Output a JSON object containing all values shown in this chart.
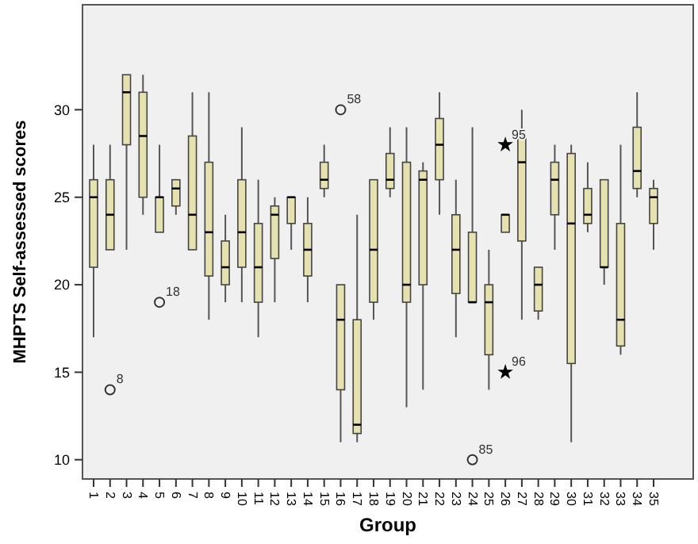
{
  "chart_data": {
    "type": "box",
    "xlabel": "Group",
    "ylabel": "MHPTS Self-assessed scores",
    "categories": [
      "1",
      "2",
      "3",
      "4",
      "5",
      "6",
      "7",
      "8",
      "9",
      "10",
      "11",
      "12",
      "13",
      "14",
      "15",
      "16",
      "17",
      "18",
      "19",
      "20",
      "21",
      "22",
      "23",
      "24",
      "25",
      "26",
      "27",
      "28",
      "29",
      "30",
      "31",
      "32",
      "33",
      "34",
      "35"
    ],
    "ylim": [
      8.9,
      36
    ],
    "yticks": [
      10,
      15,
      20,
      25,
      30
    ],
    "grid": false,
    "color": "#e6e2b0",
    "boxes": [
      {
        "low": 17,
        "q1": 21,
        "median": 25,
        "q3": 26,
        "high": 28
      },
      {
        "low": 22,
        "q1": 22,
        "median": 24,
        "q3": 26,
        "high": 28
      },
      {
        "low": 22,
        "q1": 28,
        "median": 31,
        "q3": 32,
        "high": 32
      },
      {
        "low": 24,
        "q1": 25,
        "median": 28.5,
        "q3": 31,
        "high": 32
      },
      {
        "low": 23,
        "q1": 23,
        "median": 25,
        "q3": 25,
        "high": 28
      },
      {
        "low": 24,
        "q1": 24.5,
        "median": 25.5,
        "q3": 26,
        "high": 26
      },
      {
        "low": 22,
        "q1": 22,
        "median": 24,
        "q3": 28.5,
        "high": 31
      },
      {
        "low": 18,
        "q1": 20.5,
        "median": 23,
        "q3": 27,
        "high": 31
      },
      {
        "low": 19,
        "q1": 20,
        "median": 21,
        "q3": 22.5,
        "high": 24
      },
      {
        "low": 19,
        "q1": 21,
        "median": 23,
        "q3": 26,
        "high": 29
      },
      {
        "low": 17,
        "q1": 19,
        "median": 21,
        "q3": 23.5,
        "high": 26
      },
      {
        "low": 19,
        "q1": 21.5,
        "median": 24,
        "q3": 24.5,
        "high": 25
      },
      {
        "low": 22,
        "q1": 23.5,
        "median": 25,
        "q3": 25,
        "high": 25
      },
      {
        "low": 19,
        "q1": 20.5,
        "median": 22,
        "q3": 23.5,
        "high": 25
      },
      {
        "low": 25,
        "q1": 25.5,
        "median": 26,
        "q3": 27,
        "high": 28
      },
      {
        "low": 11,
        "q1": 14,
        "median": 18,
        "q3": 20,
        "high": 20
      },
      {
        "low": 11,
        "q1": 11.5,
        "median": 12,
        "q3": 18,
        "high": 24
      },
      {
        "low": 18,
        "q1": 19,
        "median": 22,
        "q3": 26,
        "high": 26
      },
      {
        "low": 25,
        "q1": 25.5,
        "median": 26,
        "q3": 27.5,
        "high": 29
      },
      {
        "low": 13,
        "q1": 19,
        "median": 20,
        "q3": 27,
        "high": 29
      },
      {
        "low": 14,
        "q1": 20,
        "median": 26,
        "q3": 26.5,
        "high": 27
      },
      {
        "low": 24,
        "q1": 26,
        "median": 28,
        "q3": 29.5,
        "high": 31
      },
      {
        "low": 17,
        "q1": 19.5,
        "median": 22,
        "q3": 24,
        "high": 26
      },
      {
        "low": 19,
        "q1": 19,
        "median": 19,
        "q3": 23,
        "high": 29
      },
      {
        "low": 14,
        "q1": 16,
        "median": 19,
        "q3": 20,
        "high": 22
      },
      {
        "low": 23,
        "q1": 23,
        "median": 24,
        "q3": 24,
        "high": 24
      },
      {
        "low": 18,
        "q1": 22.5,
        "median": 27,
        "q3": 28.5,
        "high": 30
      },
      {
        "low": 18,
        "q1": 18.5,
        "median": 20,
        "q3": 21,
        "high": 21
      },
      {
        "low": 22,
        "q1": 24,
        "median": 26,
        "q3": 27,
        "high": 28
      },
      {
        "low": 11,
        "q1": 15.5,
        "median": 23.5,
        "q3": 27.5,
        "high": 28
      },
      {
        "low": 23,
        "q1": 23.5,
        "median": 24,
        "q3": 25.5,
        "high": 27
      },
      {
        "low": 20,
        "q1": 21,
        "median": 21,
        "q3": 26,
        "high": 26
      },
      {
        "low": 16,
        "q1": 16.5,
        "median": 18,
        "q3": 23.5,
        "high": 28
      },
      {
        "low": 25,
        "q1": 25.5,
        "median": 26.5,
        "q3": 29,
        "high": 31
      },
      {
        "low": 22,
        "q1": 23.5,
        "median": 25,
        "q3": 25.5,
        "high": 26
      }
    ],
    "series": [
      {
        "type": "scatter",
        "marker": "circle",
        "color": "#333333",
        "x": [
          "2",
          "5",
          "16",
          "24"
        ],
        "values": [
          14,
          19,
          30,
          10
        ]
      },
      {
        "type": "scatter",
        "marker": "star",
        "color": "#000000",
        "x": [
          "26",
          "26"
        ],
        "values": [
          28,
          15
        ]
      }
    ],
    "annotations": [
      {
        "text": "8",
        "x": "2",
        "y": 14
      },
      {
        "text": "18",
        "x": "5",
        "y": 19
      },
      {
        "text": "58",
        "x": "16",
        "y": 30
      },
      {
        "text": "85",
        "x": "24",
        "y": 10
      },
      {
        "text": "95",
        "x": "26",
        "y": 28
      },
      {
        "text": "96",
        "x": "26",
        "y": 15
      }
    ]
  }
}
